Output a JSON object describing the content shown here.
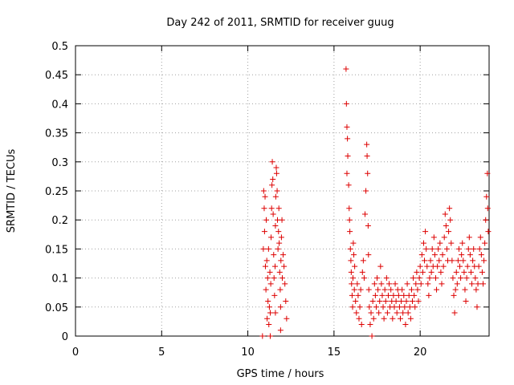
{
  "chart_data": {
    "type": "scatter",
    "title": "Day 242 of 2011, SRMTID for receiver guug",
    "xlabel": "GPS time / hours",
    "ylabel": "SRMTID / TECUs",
    "xlim": [
      0,
      24
    ],
    "ylim": [
      0,
      0.5
    ],
    "x_ticks": [
      0,
      5,
      10,
      15,
      20
    ],
    "x_tick_labels": [
      "0",
      "5",
      "10",
      "15",
      "20"
    ],
    "y_ticks": [
      0,
      0.05,
      0.1,
      0.15,
      0.2,
      0.25,
      0.3,
      0.35,
      0.4,
      0.45,
      0.5
    ],
    "y_tick_labels": [
      "0",
      "0.05",
      "0.1",
      "0.15",
      "0.2",
      "0.25",
      "0.3",
      "0.35",
      "0.4",
      "0.45",
      "0.5"
    ],
    "grid": true,
    "marker": "+",
    "color": "#dd0000",
    "series": [
      {
        "points": [
          [
            10.85,
            0.0
          ],
          [
            10.9,
            0.15
          ],
          [
            10.92,
            0.25
          ],
          [
            10.95,
            0.22
          ],
          [
            10.97,
            0.18
          ],
          [
            11.0,
            0.24
          ],
          [
            11.02,
            0.12
          ],
          [
            11.05,
            0.08
          ],
          [
            11.07,
            0.2
          ],
          [
            11.1,
            0.13
          ],
          [
            11.12,
            0.03
          ],
          [
            11.15,
            0.1
          ],
          [
            11.17,
            0.06
          ],
          [
            11.2,
            0.15
          ],
          [
            11.22,
            0.02
          ],
          [
            11.25,
            0.05
          ],
          [
            11.28,
            0.11
          ],
          [
            11.3,
            0.04
          ],
          [
            11.33,
            0.09
          ],
          [
            11.35,
            0.17
          ],
          [
            11.38,
            0.22
          ],
          [
            11.4,
            0.26
          ],
          [
            11.42,
            0.3
          ],
          [
            11.45,
            0.27
          ],
          [
            11.47,
            0.21
          ],
          [
            11.5,
            0.14
          ],
          [
            11.52,
            0.1
          ],
          [
            11.55,
            0.07
          ],
          [
            11.58,
            0.12
          ],
          [
            11.6,
            0.19
          ],
          [
            11.62,
            0.24
          ],
          [
            11.65,
            0.29
          ],
          [
            11.67,
            0.28
          ],
          [
            11.7,
            0.25
          ],
          [
            11.72,
            0.2
          ],
          [
            11.75,
            0.15
          ],
          [
            11.78,
            0.18
          ],
          [
            11.8,
            0.22
          ],
          [
            11.82,
            0.16
          ],
          [
            11.85,
            0.11
          ],
          [
            11.88,
            0.08
          ],
          [
            11.9,
            0.05
          ],
          [
            11.92,
            0.13
          ],
          [
            11.95,
            0.17
          ],
          [
            11.98,
            0.2
          ],
          [
            12.0,
            0.1
          ],
          [
            12.05,
            0.14
          ],
          [
            12.1,
            0.12
          ],
          [
            12.15,
            0.09
          ],
          [
            12.2,
            0.06
          ],
          [
            12.25,
            0.03
          ],
          [
            11.3,
            0.0
          ],
          [
            11.6,
            0.04
          ],
          [
            11.9,
            0.01
          ],
          [
            15.7,
            0.46
          ],
          [
            15.72,
            0.4
          ],
          [
            15.75,
            0.36
          ],
          [
            15.78,
            0.34
          ],
          [
            15.8,
            0.31
          ],
          [
            15.75,
            0.28
          ],
          [
            15.85,
            0.26
          ],
          [
            15.88,
            0.22
          ],
          [
            15.9,
            0.2
          ],
          [
            15.92,
            0.18
          ],
          [
            15.95,
            0.15
          ],
          [
            15.98,
            0.13
          ],
          [
            16.0,
            0.11
          ],
          [
            16.02,
            0.09
          ],
          [
            16.05,
            0.07
          ],
          [
            16.08,
            0.05
          ],
          [
            16.1,
            0.1
          ],
          [
            16.12,
            0.16
          ],
          [
            16.15,
            0.14
          ],
          [
            16.18,
            0.08
          ],
          [
            16.2,
            0.12
          ],
          [
            16.25,
            0.06
          ],
          [
            16.3,
            0.04
          ],
          [
            16.35,
            0.09
          ],
          [
            16.4,
            0.07
          ],
          [
            16.45,
            0.03
          ],
          [
            16.5,
            0.05
          ],
          [
            16.55,
            0.08
          ],
          [
            16.6,
            0.02
          ],
          [
            16.65,
            0.11
          ],
          [
            16.7,
            0.13
          ],
          [
            16.75,
            0.1
          ],
          [
            16.8,
            0.21
          ],
          [
            16.85,
            0.25
          ],
          [
            16.9,
            0.33
          ],
          [
            16.92,
            0.31
          ],
          [
            16.95,
            0.28
          ],
          [
            16.98,
            0.19
          ],
          [
            17.0,
            0.14
          ],
          [
            17.02,
            0.08
          ],
          [
            17.05,
            0.05
          ],
          [
            17.1,
            0.02
          ],
          [
            17.15,
            0.04
          ],
          [
            17.2,
            0.0
          ],
          [
            17.25,
            0.06
          ],
          [
            17.3,
            0.03
          ],
          [
            17.35,
            0.09
          ],
          [
            17.4,
            0.07
          ],
          [
            17.45,
            0.05
          ],
          [
            17.5,
            0.1
          ],
          [
            17.55,
            0.08
          ],
          [
            17.6,
            0.04
          ],
          [
            17.65,
            0.06
          ],
          [
            17.7,
            0.12
          ],
          [
            17.75,
            0.09
          ],
          [
            17.8,
            0.07
          ],
          [
            17.85,
            0.05
          ],
          [
            17.9,
            0.03
          ],
          [
            17.95,
            0.08
          ],
          [
            18.0,
            0.06
          ],
          [
            18.05,
            0.1
          ],
          [
            18.1,
            0.04
          ],
          [
            18.15,
            0.07
          ],
          [
            18.2,
            0.09
          ],
          [
            18.25,
            0.05
          ],
          [
            18.3,
            0.08
          ],
          [
            18.35,
            0.06
          ],
          [
            18.4,
            0.03
          ],
          [
            18.45,
            0.07
          ],
          [
            18.5,
            0.05
          ],
          [
            18.55,
            0.09
          ],
          [
            18.6,
            0.06
          ],
          [
            18.65,
            0.04
          ],
          [
            18.7,
            0.08
          ],
          [
            18.75,
            0.07
          ],
          [
            18.8,
            0.05
          ],
          [
            18.85,
            0.03
          ],
          [
            18.9,
            0.06
          ],
          [
            18.95,
            0.08
          ],
          [
            19.0,
            0.04
          ],
          [
            19.05,
            0.07
          ],
          [
            19.1,
            0.05
          ],
          [
            19.15,
            0.02
          ],
          [
            19.2,
            0.06
          ],
          [
            19.25,
            0.09
          ],
          [
            19.3,
            0.04
          ],
          [
            19.35,
            0.07
          ],
          [
            19.4,
            0.05
          ],
          [
            19.45,
            0.03
          ],
          [
            19.5,
            0.08
          ],
          [
            19.55,
            0.06
          ],
          [
            19.6,
            0.1
          ],
          [
            19.65,
            0.07
          ],
          [
            19.7,
            0.05
          ],
          [
            19.75,
            0.09
          ],
          [
            19.8,
            0.11
          ],
          [
            19.85,
            0.08
          ],
          [
            19.9,
            0.06
          ],
          [
            19.95,
            0.1
          ],
          [
            20.0,
            0.12
          ],
          [
            20.05,
            0.09
          ],
          [
            20.1,
            0.14
          ],
          [
            20.15,
            0.11
          ],
          [
            20.2,
            0.16
          ],
          [
            20.25,
            0.13
          ],
          [
            20.3,
            0.18
          ],
          [
            20.35,
            0.15
          ],
          [
            20.4,
            0.12
          ],
          [
            20.45,
            0.09
          ],
          [
            20.5,
            0.07
          ],
          [
            20.55,
            0.1
          ],
          [
            20.6,
            0.13
          ],
          [
            20.65,
            0.11
          ],
          [
            20.7,
            0.15
          ],
          [
            20.75,
            0.12
          ],
          [
            20.8,
            0.17
          ],
          [
            20.85,
            0.14
          ],
          [
            20.9,
            0.1
          ],
          [
            20.95,
            0.08
          ],
          [
            21.0,
            0.12
          ],
          [
            21.05,
            0.15
          ],
          [
            21.1,
            0.13
          ],
          [
            21.15,
            0.16
          ],
          [
            21.2,
            0.11
          ],
          [
            21.25,
            0.09
          ],
          [
            21.3,
            0.14
          ],
          [
            21.35,
            0.12
          ],
          [
            21.4,
            0.17
          ],
          [
            21.45,
            0.21
          ],
          [
            21.5,
            0.19
          ],
          [
            21.55,
            0.15
          ],
          [
            21.6,
            0.13
          ],
          [
            21.65,
            0.18
          ],
          [
            21.7,
            0.22
          ],
          [
            21.75,
            0.2
          ],
          [
            21.8,
            0.16
          ],
          [
            21.85,
            0.13
          ],
          [
            21.9,
            0.1
          ],
          [
            21.95,
            0.07
          ],
          [
            22.0,
            0.04
          ],
          [
            22.05,
            0.08
          ],
          [
            22.1,
            0.11
          ],
          [
            22.15,
            0.09
          ],
          [
            22.2,
            0.13
          ],
          [
            22.25,
            0.15
          ],
          [
            22.3,
            0.12
          ],
          [
            22.35,
            0.1
          ],
          [
            22.4,
            0.14
          ],
          [
            22.45,
            0.16
          ],
          [
            22.5,
            0.13
          ],
          [
            22.55,
            0.11
          ],
          [
            22.6,
            0.08
          ],
          [
            22.65,
            0.06
          ],
          [
            22.7,
            0.1
          ],
          [
            22.75,
            0.12
          ],
          [
            22.8,
            0.15
          ],
          [
            22.85,
            0.17
          ],
          [
            22.9,
            0.14
          ],
          [
            22.95,
            0.11
          ],
          [
            23.0,
            0.09
          ],
          [
            23.05,
            0.13
          ],
          [
            23.1,
            0.15
          ],
          [
            23.15,
            0.12
          ],
          [
            23.2,
            0.1
          ],
          [
            23.25,
            0.08
          ],
          [
            23.3,
            0.05
          ],
          [
            23.35,
            0.09
          ],
          [
            23.4,
            0.12
          ],
          [
            23.45,
            0.15
          ],
          [
            23.5,
            0.17
          ],
          [
            23.55,
            0.14
          ],
          [
            23.6,
            0.11
          ],
          [
            23.65,
            0.09
          ],
          [
            23.7,
            0.13
          ],
          [
            23.75,
            0.16
          ],
          [
            23.8,
            0.2
          ],
          [
            23.85,
            0.24
          ],
          [
            23.9,
            0.28
          ],
          [
            23.92,
            0.22
          ],
          [
            23.95,
            0.18
          ]
        ]
      }
    ]
  }
}
